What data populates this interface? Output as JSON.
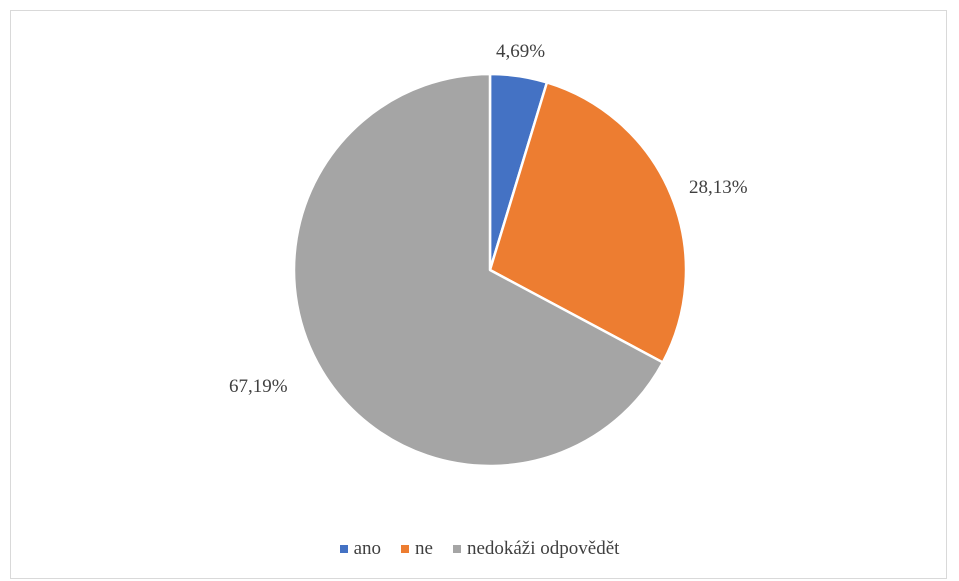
{
  "chart_data": {
    "type": "pie",
    "categories": [
      "ano",
      "ne",
      "nedokáži odpovědět"
    ],
    "values": [
      4.69,
      28.13,
      67.19
    ],
    "labels": [
      "4,69%",
      "28,13%",
      "67,19%"
    ],
    "colors": [
      "#4472c4",
      "#ed7d31",
      "#a5a5a5"
    ],
    "legend": "bottom"
  }
}
